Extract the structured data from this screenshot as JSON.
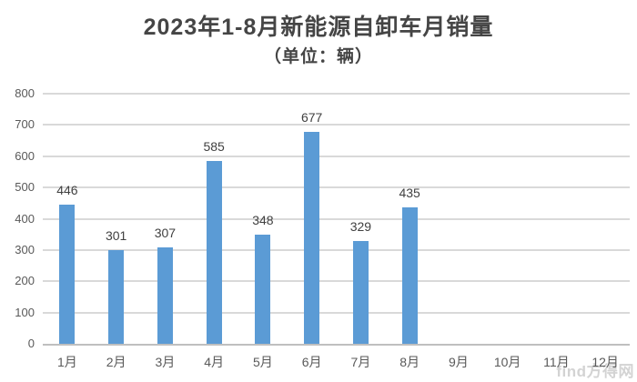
{
  "chart_data": {
    "type": "bar",
    "title": "2023年1-8月新能源自卸车月销量",
    "subtitle": "（单位：辆）",
    "categories": [
      "1月",
      "2月",
      "3月",
      "4月",
      "5月",
      "6月",
      "7月",
      "8月",
      "9月",
      "10月",
      "11月",
      "12月"
    ],
    "values": [
      446,
      301,
      307,
      585,
      348,
      677,
      329,
      435,
      null,
      null,
      null,
      null
    ],
    "xlabel": "",
    "ylabel": "",
    "ylim": [
      0,
      800
    ],
    "ytick_step": 100,
    "grid": true,
    "legend": "none",
    "bar_color": "#5B9BD5",
    "gridline_color": "#D9D9D9",
    "axis_line_color": "#BFBFBF",
    "axis_text_color": "#595959",
    "data_label_color": "#404040",
    "title_color": "#454545"
  },
  "watermark": {
    "text": "find方得网"
  }
}
